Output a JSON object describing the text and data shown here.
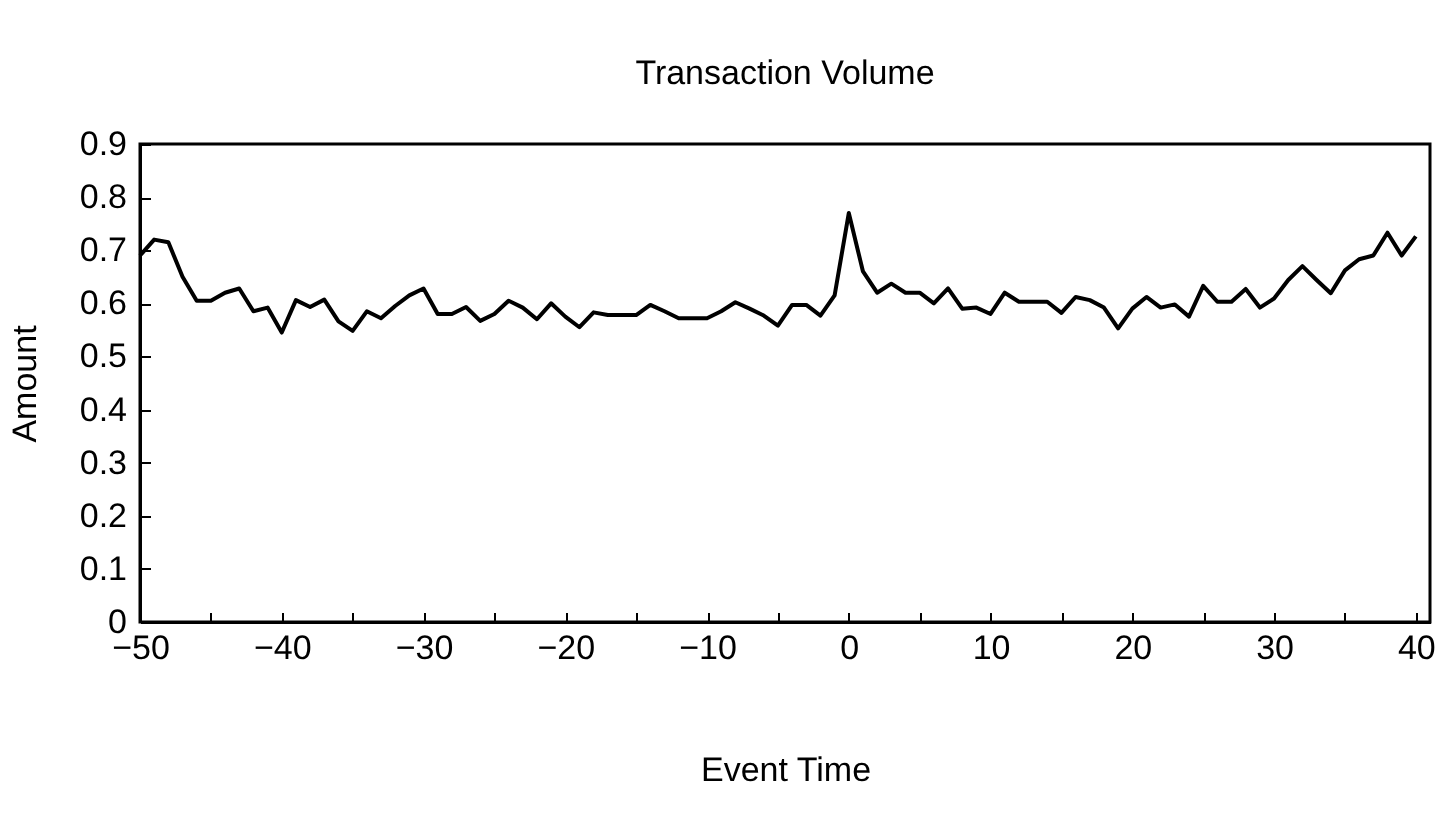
{
  "chart_data": {
    "type": "line",
    "title": "Transaction Volume",
    "xlabel": "Event Time",
    "ylabel": "Amount",
    "x": [
      -50,
      -49,
      -48,
      -47,
      -46,
      -45,
      -44,
      -43,
      -42,
      -41,
      -40,
      -39,
      -38,
      -37,
      -36,
      -35,
      -34,
      -33,
      -32,
      -31,
      -30,
      -29,
      -28,
      -27,
      -26,
      -25,
      -24,
      -23,
      -22,
      -21,
      -20,
      -19,
      -18,
      -17,
      -16,
      -15,
      -14,
      -13,
      -12,
      -11,
      -10,
      -9,
      -8,
      -7,
      -6,
      -5,
      -4,
      -3,
      -2,
      -1,
      0,
      1,
      2,
      3,
      4,
      5,
      6,
      7,
      8,
      9,
      10,
      11,
      12,
      13,
      14,
      15,
      16,
      17,
      18,
      19,
      20,
      21,
      22,
      23,
      24,
      25,
      26,
      27,
      28,
      29,
      30,
      31,
      32,
      33,
      34,
      35,
      36,
      37,
      38,
      39,
      40
    ],
    "series": [
      {
        "color": "#000000",
        "values": [
          0.69,
          0.72,
          0.715,
          0.65,
          0.605,
          0.605,
          0.62,
          0.628,
          0.585,
          0.592,
          0.545,
          0.606,
          0.593,
          0.607,
          0.566,
          0.548,
          0.585,
          0.572,
          0.595,
          0.615,
          0.628,
          0.58,
          0.58,
          0.593,
          0.567,
          0.58,
          0.605,
          0.592,
          0.57,
          0.6,
          0.575,
          0.555,
          0.583,
          0.578,
          0.578,
          0.578,
          0.597,
          0.585,
          0.572,
          0.572,
          0.572,
          0.585,
          0.602,
          0.59,
          0.577,
          0.558,
          0.597,
          0.597,
          0.577,
          0.615,
          0.77,
          0.66,
          0.62,
          0.637,
          0.62,
          0.62,
          0.6,
          0.628,
          0.59,
          0.592,
          0.58,
          0.62,
          0.603,
          0.603,
          0.603,
          0.582,
          0.612,
          0.606,
          0.592,
          0.553,
          0.59,
          0.612,
          0.592,
          0.598,
          0.575,
          0.633,
          0.603,
          0.603,
          0.627,
          0.592,
          0.609,
          0.644,
          0.67,
          0.644,
          0.619,
          0.662,
          0.683,
          0.69,
          0.733,
          0.69,
          0.726
        ]
      }
    ],
    "xlim": [
      -50,
      41
    ],
    "xticks": [
      -50,
      {
        "value": -45,
        "label": null
      },
      -40,
      {
        "value": -35,
        "label": null
      },
      -30,
      {
        "value": -25,
        "label": null
      },
      -20,
      {
        "value": -15,
        "label": null
      },
      -10,
      {
        "value": -5,
        "label": null
      },
      0,
      {
        "value": 5,
        "label": null
      },
      10,
      {
        "value": 15,
        "label": null
      },
      20,
      {
        "value": 25,
        "label": null
      },
      30,
      {
        "value": 35,
        "label": null
      },
      40
    ],
    "ylim": [
      0,
      0.9
    ],
    "yticks": [
      0,
      0.1,
      0.2,
      0.3,
      0.4,
      0.5,
      0.6,
      0.7,
      0.8,
      0.9
    ],
    "grid": false,
    "marker": "none",
    "line_style": "solid"
  }
}
